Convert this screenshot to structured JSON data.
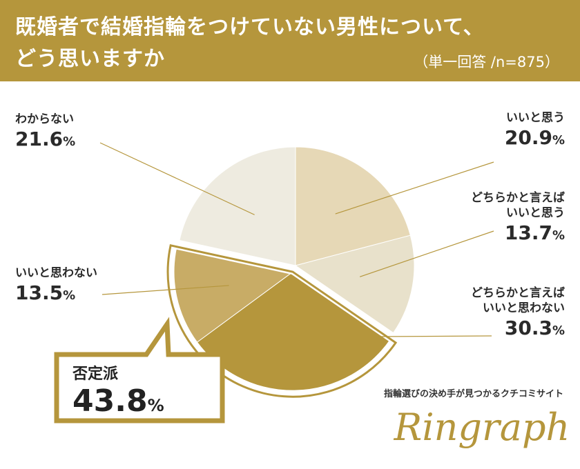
{
  "header": {
    "title_line1": "既婚者で結婚指輪をつけていない男性について、",
    "title_line2": "どう思いますか",
    "subtitle": "（単一回答 /n=875）"
  },
  "chart_data": {
    "type": "pie",
    "title": "既婚者で結婚指輪をつけていない男性について、どう思いますか",
    "subtitle": "（単一回答 /n=875）",
    "unit": "%",
    "slices": [
      {
        "name": "いいと思う",
        "value": 20.9,
        "color": "#e6d8b6"
      },
      {
        "name": "どちらかと言えばいいと思う",
        "value": 13.7,
        "color": "#e8e1cb"
      },
      {
        "name": "どちらかと言えばいいと思わない",
        "value": 30.3,
        "color": "#b5963c"
      },
      {
        "name": "いいと思わない",
        "value": 13.5,
        "color": "#c8ac66"
      },
      {
        "name": "わからない",
        "value": 21.6,
        "color": "#eeebe0"
      }
    ],
    "display_labels": [
      {
        "name_lines": [
          "いいと思う"
        ],
        "value": "20.9",
        "unit": "%"
      },
      {
        "name_lines": [
          "どちらかと言えば",
          "いいと思う"
        ],
        "value": "13.7",
        "unit": "%"
      },
      {
        "name_lines": [
          "どちらかと言えば",
          "いいと思わない"
        ],
        "value": "30.3",
        "unit": "%"
      },
      {
        "name_lines": [
          "いいと思わない"
        ],
        "value": "13.5",
        "unit": "%"
      },
      {
        "name_lines": [
          "わからない"
        ],
        "value": "21.6",
        "unit": "%"
      }
    ],
    "callout": {
      "label": "否定派",
      "value": "43.8",
      "unit": "%",
      "group": [
        "どちらかと言えばいいと思わない",
        "いいと思わない"
      ]
    },
    "exploded_group": [
      "どちらかと言えばいいと思わない",
      "いいと思わない"
    ],
    "start_angle_deg": 0,
    "direction": "clockwise",
    "accent_color": "#b5963c",
    "leader_color": "#b5963c"
  },
  "brand": {
    "tagline": "指輪選びの決め手が見つかるクチコミサイト",
    "logo_text": "Ringraph"
  }
}
